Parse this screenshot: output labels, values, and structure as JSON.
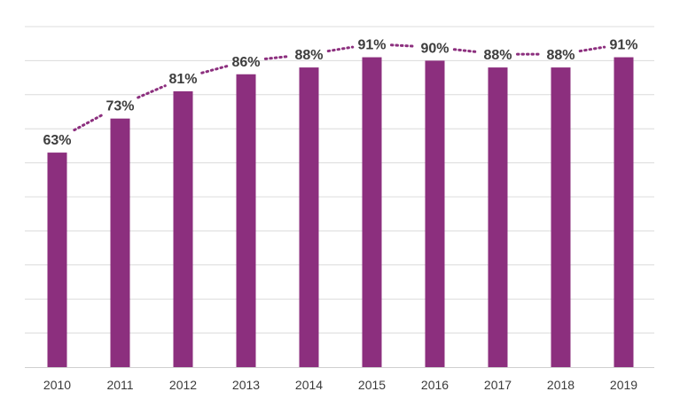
{
  "chart_data": {
    "type": "bar",
    "categories": [
      "2010",
      "2011",
      "2012",
      "2013",
      "2014",
      "2015",
      "2016",
      "2017",
      "2018",
      "2019"
    ],
    "values": [
      63,
      73,
      81,
      86,
      88,
      91,
      90,
      88,
      88,
      91
    ],
    "data_labels": [
      "63%",
      "73%",
      "81%",
      "86%",
      "88%",
      "91%",
      "90%",
      "88%",
      "88%",
      "91%"
    ],
    "value_unit": "%",
    "trend_line": {
      "style": "dotted",
      "connects": "data-labels"
    },
    "ylim": [
      0,
      100
    ],
    "y_axis_labels_shown": false,
    "grid": true,
    "gridline_step": 10,
    "legend": "none",
    "colors": {
      "bar": "#8c2f7e",
      "trend_line": "#8c2f7e",
      "gridline": "#dcdcdc",
      "label_text": "#3d3d3d",
      "tick_text": "#3a3a3a"
    }
  }
}
